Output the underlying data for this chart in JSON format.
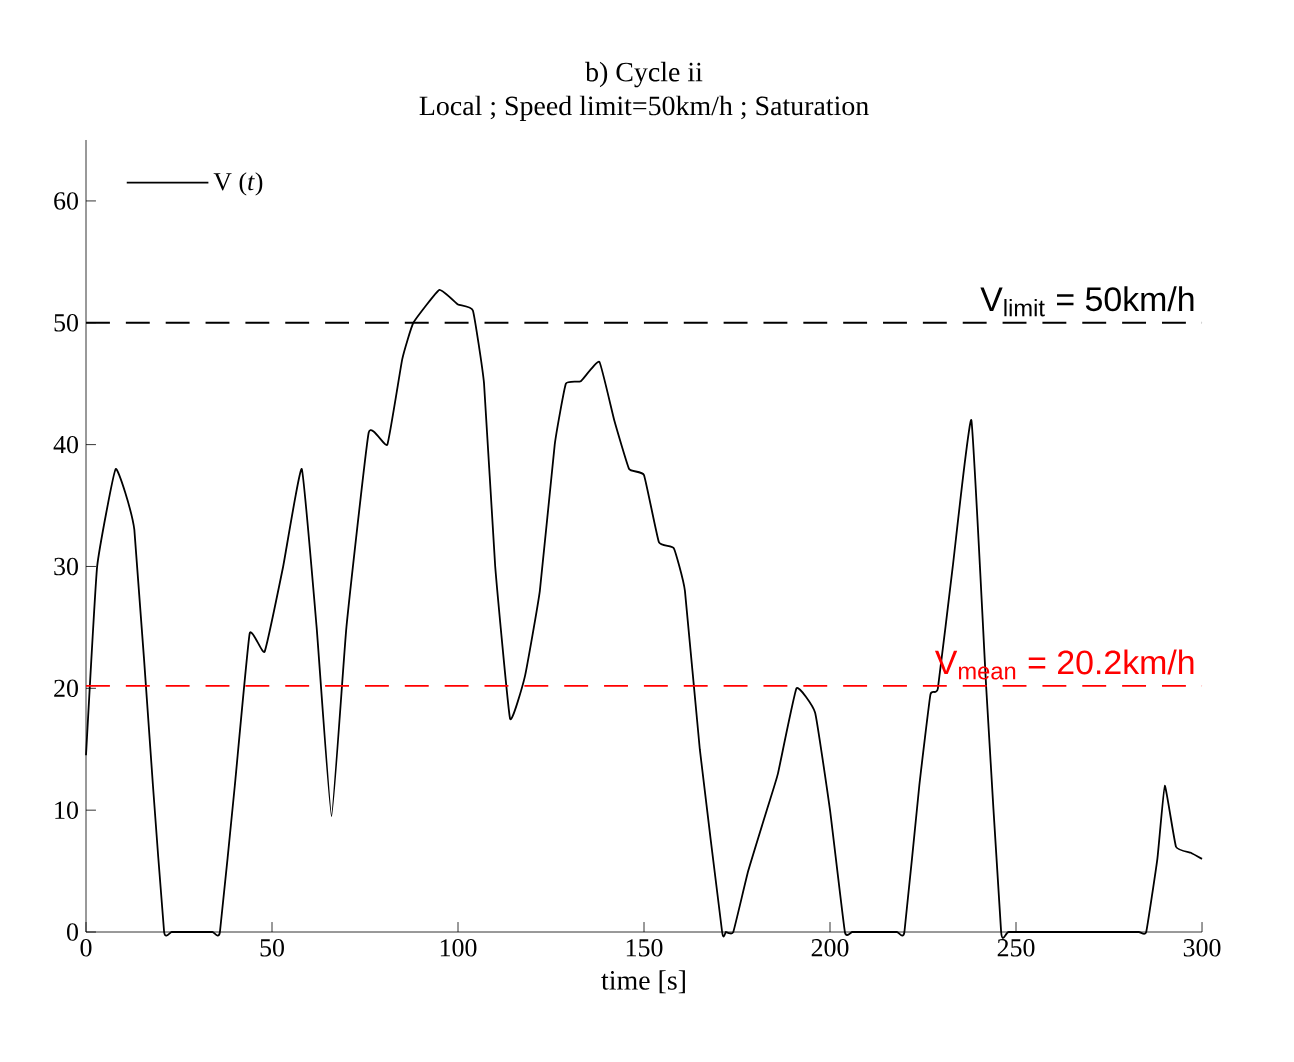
{
  "chart_data": {
    "type": "line",
    "title": "b) Cycle ii",
    "subtitle": "Local ; Speed limit=50km/h ; Saturation",
    "xlabel": "time [s]",
    "xlim": [
      0,
      300
    ],
    "ylim": [
      0,
      65
    ],
    "xticks": [
      0,
      50,
      100,
      150,
      200,
      250,
      300
    ],
    "yticks": [
      0,
      10,
      20,
      30,
      40,
      50,
      60
    ],
    "legend": "top left",
    "marker": "none",
    "line_style": "solid",
    "series": [
      {
        "name": "V (*t*)",
        "color": "#000000",
        "x": [
          0,
          3,
          8,
          13,
          18,
          21,
          23,
          28,
          34,
          36,
          40,
          44,
          48,
          53,
          58,
          62,
          66,
          70,
          76,
          81,
          85,
          88,
          95,
          100,
          104,
          107,
          110,
          114,
          118,
          122,
          126,
          129,
          133,
          138,
          142,
          146,
          150,
          154,
          158,
          161,
          165,
          171,
          172,
          174,
          178,
          183,
          186,
          191,
          196,
          200,
          204,
          206,
          212,
          218,
          220,
          224,
          227,
          229,
          233,
          238,
          242,
          246,
          248,
          260,
          275,
          283,
          285,
          288,
          290,
          293,
          297,
          300
        ],
        "values": [
          14.5,
          30,
          38,
          33,
          12,
          0,
          0,
          0,
          0,
          0,
          12,
          24.5,
          23,
          30,
          38,
          25,
          9.5,
          25,
          41,
          40,
          47,
          50,
          52.7,
          51.5,
          51,
          45,
          30,
          17.5,
          21,
          28,
          40,
          45,
          45.2,
          46.8,
          42,
          38,
          37.5,
          32,
          31.5,
          28,
          15,
          0,
          0,
          0,
          5,
          10,
          13,
          20,
          18,
          10,
          0,
          0,
          0,
          0,
          0,
          12,
          19.5,
          20,
          30,
          42,
          20,
          0,
          0,
          0,
          0,
          0,
          0,
          6,
          12,
          7,
          6.5,
          6
        ]
      }
    ],
    "ref_lines": [
      {
        "axis": "y",
        "value": 50,
        "label": "V$_{limit}$ = 50km/h",
        "color": "#000000",
        "line_style": "dashed"
      },
      {
        "axis": "y",
        "value": 20.2,
        "label": "V$_{mean}$ = 20.2km/h",
        "color": "#ff0000",
        "line_style": "dashed"
      }
    ]
  }
}
